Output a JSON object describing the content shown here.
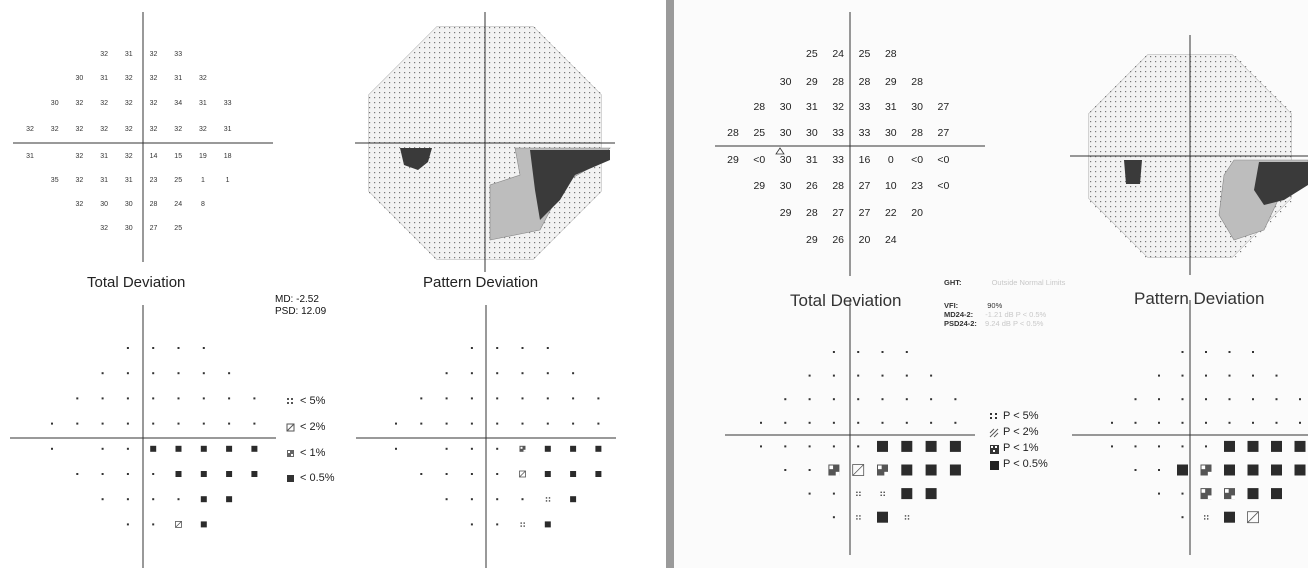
{
  "left": {
    "total_deviation_values": [
      [
        "32",
        "31",
        "32",
        "33"
      ],
      [
        "30",
        "31",
        "32",
        "32",
        "31",
        "32"
      ],
      [
        "30",
        "32",
        "32",
        "32",
        "32",
        "34",
        "31",
        "33"
      ],
      [
        "32",
        "32",
        "32",
        "32",
        "32",
        "32",
        "32",
        "32",
        "31"
      ],
      [
        "31",
        "",
        "32",
        "31",
        "32",
        "14",
        "15",
        "19",
        "18"
      ],
      [
        "35",
        "32",
        "31",
        "31",
        "23",
        "25",
        "1",
        "1"
      ],
      [
        "32",
        "30",
        "30",
        "28",
        "24",
        "8"
      ],
      [
        "32",
        "30",
        "27",
        "25"
      ]
    ],
    "total_deviation_title": "Total Deviation",
    "pattern_deviation_title": "Pattern Deviation",
    "md": "MD: -2.52",
    "psd": "PSD: 12.09",
    "legend": [
      "< 5%",
      "< 2%",
      "< 1%",
      "< 0.5%"
    ],
    "td_prob": [
      [
        "n",
        "n",
        "n",
        "n"
      ],
      [
        "n",
        "n",
        "n",
        "n",
        "n",
        "n"
      ],
      [
        "n",
        "n",
        "n",
        "n",
        "n",
        "n",
        "n",
        "n"
      ],
      [
        "n",
        "n",
        "n",
        "n",
        "n",
        "n",
        "n",
        "n",
        "n"
      ],
      [
        "n",
        "",
        "n",
        "n",
        "d",
        "d",
        "d",
        "d",
        "d"
      ],
      [
        "n",
        "n",
        "n",
        "n",
        "d",
        "d",
        "d",
        "d"
      ],
      [
        "n",
        "n",
        "n",
        "n",
        "d",
        "d"
      ],
      [
        "n",
        "n",
        "b",
        "d"
      ]
    ],
    "pd_prob": [
      [
        "n",
        "n",
        "n",
        "n"
      ],
      [
        "n",
        "n",
        "n",
        "n",
        "n",
        "n"
      ],
      [
        "n",
        "n",
        "n",
        "n",
        "n",
        "n",
        "n",
        "n"
      ],
      [
        "n",
        "n",
        "n",
        "n",
        "n",
        "n",
        "n",
        "n",
        "n"
      ],
      [
        "n",
        "",
        "n",
        "n",
        "n",
        "c",
        "d",
        "d",
        "d"
      ],
      [
        "n",
        "n",
        "n",
        "n",
        "b",
        "d",
        "d",
        "d"
      ],
      [
        "n",
        "n",
        "n",
        "n",
        "a",
        "d"
      ],
      [
        "n",
        "n",
        "a",
        "d"
      ]
    ]
  },
  "right": {
    "total_deviation_values": [
      [
        "25",
        "24",
        "25",
        "28"
      ],
      [
        "30",
        "29",
        "28",
        "28",
        "29",
        "28"
      ],
      [
        "28",
        "30",
        "31",
        "32",
        "33",
        "31",
        "30",
        "27"
      ],
      [
        "28",
        "25",
        "30",
        "30",
        "33",
        "33",
        "30",
        "28",
        "27"
      ],
      [
        "29",
        "<0",
        "30",
        "31",
        "33",
        "16",
        "0",
        "<0",
        "<0"
      ],
      [
        "29",
        "30",
        "26",
        "28",
        "27",
        "10",
        "23",
        "<0"
      ],
      [
        "29",
        "28",
        "27",
        "27",
        "22",
        "20"
      ],
      [
        "29",
        "26",
        "20",
        "24"
      ]
    ],
    "total_deviation_title": "Total Deviation",
    "pattern_deviation_title": "Pattern Deviation",
    "ght_label": "GHT:",
    "ght_value": "Outside Normal Limits",
    "vfi_label": "VFI:",
    "vfi_value": "90%",
    "md_label": "MD24-2:",
    "md_value": "-1.21 dB P < 0.5%",
    "psd_label": "PSD24-2:",
    "psd_value": "9.24 dB P < 0.5%",
    "legend": [
      "P < 5%",
      "P < 2%",
      "P < 1%",
      "P < 0.5%"
    ],
    "td_prob": [
      [
        "n",
        "n",
        "n",
        "n"
      ],
      [
        "n",
        "n",
        "n",
        "n",
        "n",
        "n"
      ],
      [
        "n",
        "n",
        "n",
        "n",
        "n",
        "n",
        "n",
        "n"
      ],
      [
        "n",
        "n",
        "n",
        "n",
        "n",
        "n",
        "n",
        "n",
        "n"
      ],
      [
        "n",
        "n",
        "n",
        "n",
        "n",
        "d",
        "d",
        "d",
        "d"
      ],
      [
        "n",
        "n",
        "c",
        "b",
        "c",
        "d",
        "d",
        "d"
      ],
      [
        "n",
        "n",
        "a",
        "a",
        "d",
        "d"
      ],
      [
        "n",
        "a",
        "d",
        "a"
      ]
    ],
    "pd_prob": [
      [
        "n",
        "n",
        "n",
        "n"
      ],
      [
        "n",
        "n",
        "n",
        "n",
        "n",
        "n"
      ],
      [
        "n",
        "n",
        "n",
        "n",
        "n",
        "n",
        "n",
        "n"
      ],
      [
        "n",
        "n",
        "n",
        "n",
        "n",
        "n",
        "n",
        "n",
        "n"
      ],
      [
        "n",
        "n",
        "n",
        "n",
        "n",
        "d",
        "d",
        "d",
        "d"
      ],
      [
        "n",
        "n",
        "d",
        "c",
        "d",
        "d",
        "d",
        "d"
      ],
      [
        "n",
        "n",
        "c",
        "c",
        "d",
        "d"
      ],
      [
        "n",
        "a",
        "d",
        "b"
      ]
    ]
  },
  "colors": {
    "divider": "#9a9a9a",
    "dark": "#2b2b2b",
    "dots": "#333333"
  }
}
